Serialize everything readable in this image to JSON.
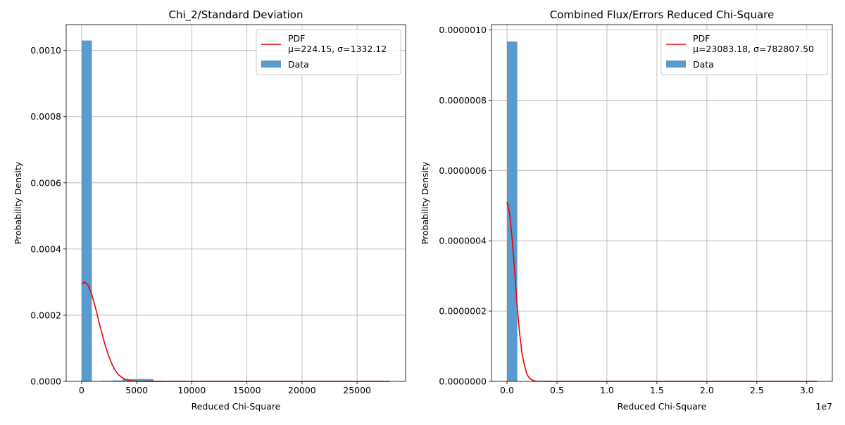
{
  "chart_data": [
    {
      "type": "bar",
      "title": "Chi_2/Standard Deviation",
      "xlabel": "Reduced Chi-Square",
      "ylabel": "Probability Density",
      "xlim": [
        -1400,
        29400
      ],
      "ylim": [
        0,
        0.001078
      ],
      "xticks": [
        0,
        5000,
        10000,
        15000,
        20000,
        25000
      ],
      "xtick_labels": [
        "0",
        "5000",
        "10000",
        "15000",
        "20000",
        "25000"
      ],
      "yticks": [
        0,
        0.0002,
        0.0004,
        0.0006,
        0.0008,
        0.001
      ],
      "ytick_labels": [
        "0.0000",
        "0.0002",
        "0.0004",
        "0.0006",
        "0.0008",
        "0.0010"
      ],
      "grid": true,
      "legend_position": "top-right",
      "bar_color": "#5a9bcf",
      "line_color": "#ee0000",
      "bars": [
        {
          "x0": 0,
          "x1": 930,
          "density": 0.00103
        },
        {
          "x0": 930,
          "x1": 1860,
          "density": 1e-06
        },
        {
          "x0": 1860,
          "x1": 2790,
          "density": 2e-06
        },
        {
          "x0": 2790,
          "x1": 3720,
          "density": 3e-06
        },
        {
          "x0": 3720,
          "x1": 4650,
          "density": 7e-06
        },
        {
          "x0": 4650,
          "x1": 5580,
          "density": 7e-06
        },
        {
          "x0": 5580,
          "x1": 6510,
          "density": 7e-06
        },
        {
          "x0": 6510,
          "x1": 7440,
          "density": 2e-06
        }
      ],
      "pdf_line": {
        "name": "PDF\nμ=224.15, σ=1332.12",
        "x": [
          0,
          300,
          600,
          900,
          1200,
          1500,
          1800,
          2100,
          2400,
          2700,
          3000,
          3300,
          3600,
          3900,
          4200,
          4500,
          5000,
          6000,
          8000,
          12000,
          20000,
          28000
        ],
        "y": [
          0.000295,
          0.0003,
          0.00029,
          0.000265,
          0.00023,
          0.00019,
          0.00015,
          0.000114,
          8.2e-05,
          5.6e-05,
          3.6e-05,
          2.2e-05,
          1.3e-05,
          7e-06,
          3.7e-06,
          1.8e-06,
          4e-07,
          1e-07,
          0,
          0,
          0,
          0
        ]
      },
      "legend": [
        {
          "kind": "line",
          "label_lines": [
            "PDF",
            "μ=224.15, σ=1332.12"
          ]
        },
        {
          "kind": "bar",
          "label_lines": [
            "Data"
          ]
        }
      ]
    },
    {
      "type": "bar",
      "title": "Combined Flux/Errors Reduced Chi-Square",
      "xlabel": "Reduced Chi-Square",
      "ylabel": "Probability Density",
      "x_offset_label": "1e7",
      "xlim": [
        -1550000,
        32550000
      ],
      "ylim": [
        0,
        1.015e-06
      ],
      "xticks": [
        0,
        5000000,
        10000000,
        15000000,
        20000000,
        25000000,
        30000000
      ],
      "xtick_labels": [
        "0.0",
        "0.5",
        "1.0",
        "1.5",
        "2.0",
        "2.5",
        "3.0"
      ],
      "yticks": [
        0,
        2e-07,
        4e-07,
        6e-07,
        8e-07,
        1e-06
      ],
      "ytick_labels": [
        "0.0000000",
        "0.0000002",
        "0.0000004",
        "0.0000006",
        "0.0000008",
        "0.0000010"
      ],
      "grid": true,
      "legend_position": "top-right",
      "bar_color": "#5a9bcf",
      "line_color": "#ee0000",
      "bars": [
        {
          "x0": 0,
          "x1": 1030000,
          "density": 9.67e-07
        }
      ],
      "pdf_line": {
        "name": "PDF\nμ=23083.18, σ=782807.50",
        "x": [
          0,
          250000,
          500000,
          750000,
          1000000,
          1250000,
          1500000,
          1750000,
          2000000,
          2250000,
          2500000,
          2750000,
          3000000,
          4000000,
          6000000,
          10000000,
          20000000,
          31000000
        ],
        "y": [
          5.1e-07,
          4.8e-07,
          4.1e-07,
          3.2e-07,
          2.2e-07,
          1.4e-07,
          8e-08,
          4.5e-08,
          2e-08,
          9e-09,
          4e-09,
          1.5e-09,
          5e-10,
          0,
          0,
          0,
          0,
          0
        ]
      },
      "legend": [
        {
          "kind": "line",
          "label_lines": [
            "PDF",
            "μ=23083.18, σ=782807.50"
          ]
        },
        {
          "kind": "bar",
          "label_lines": [
            "Data"
          ]
        }
      ]
    }
  ]
}
